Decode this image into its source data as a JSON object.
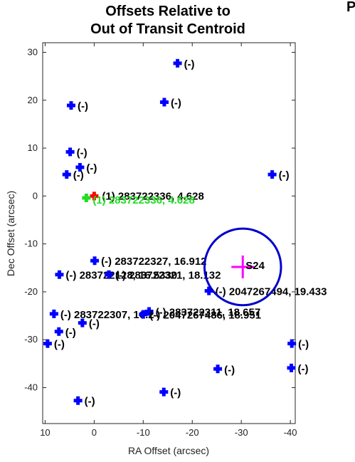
{
  "chart_data": {
    "type": "scatter",
    "title_lines": [
      "Offsets Relative to",
      "Out of Transit Centroid"
    ],
    "corner_text": "P",
    "xlabel": "RA Offset (arcsec)",
    "ylabel": "Dec Offset (arcsec)",
    "xlim": [
      10.5,
      -41
    ],
    "ylim": [
      -47.5,
      32
    ],
    "x_reversed": true,
    "grid": false,
    "xticks": [
      10,
      0,
      -10,
      -20,
      -30,
      -40
    ],
    "yticks": [
      30,
      20,
      10,
      0,
      -10,
      -20,
      -30,
      -40
    ],
    "colors": {
      "star": "#0000ff",
      "target": "#ff0000",
      "target_label": "#22dd22",
      "centroid": "#ff00ff",
      "circle": "#0000cc"
    },
    "stars": [
      {
        "x": -17.0,
        "y": 27.7,
        "label": "(-)"
      },
      {
        "x": 4.7,
        "y": 18.9,
        "label": "(-)"
      },
      {
        "x": -14.3,
        "y": 19.6,
        "label": "(-)"
      },
      {
        "x": 4.9,
        "y": 9.2,
        "label": "(-)"
      },
      {
        "x": 2.9,
        "y": 6.0,
        "label": "(-)"
      },
      {
        "x": 5.6,
        "y": 4.5,
        "label": "(-)"
      },
      {
        "x": -36.3,
        "y": 4.5,
        "label": "(-)"
      },
      {
        "x": -0.1,
        "y": -13.5,
        "label": "(-) 283722327, 16.912"
      },
      {
        "x": 7.1,
        "y": -16.4,
        "label": "(-) 283722128, 16.5330"
      },
      {
        "x": -3.0,
        "y": -16.4,
        "label": "(-) 283722321, 18.132"
      },
      {
        "x": -23.4,
        "y": -19.8,
        "label": "(-) 2047267494, 19.433"
      },
      {
        "x": 8.2,
        "y": -24.6,
        "label": "(-) 283722307, 16.2"
      },
      {
        "x": -11.2,
        "y": -24.1,
        "label": "(-) 283722311, 18.657"
      },
      {
        "x": -10.0,
        "y": -24.7,
        "label": "(-) 2047267486, 18.951"
      },
      {
        "x": 2.4,
        "y": -26.5,
        "label": "(-)"
      },
      {
        "x": 7.2,
        "y": -28.3,
        "label": "(-)"
      },
      {
        "x": 9.5,
        "y": -30.8,
        "label": "(-)"
      },
      {
        "x": -40.3,
        "y": -30.8,
        "label": "(-)"
      },
      {
        "x": -25.2,
        "y": -36.1,
        "label": "(-)"
      },
      {
        "x": -40.2,
        "y": -35.9,
        "label": "(-)"
      },
      {
        "x": -14.2,
        "y": -40.9,
        "label": "(-)"
      },
      {
        "x": 3.3,
        "y": -42.7,
        "label": "(-)"
      }
    ],
    "target": {
      "x": 0,
      "y": 0,
      "label": "(1) 283722336, 4.628"
    },
    "target_green": {
      "x": 1.6,
      "y": -0.4,
      "label": "(1) 283722336, 4.628"
    },
    "centroid": {
      "x": -30.3,
      "y": -14.8,
      "label": "S24"
    },
    "circle": {
      "x": -30.3,
      "y": -14.8,
      "radius_arcsec": 7.8
    }
  }
}
